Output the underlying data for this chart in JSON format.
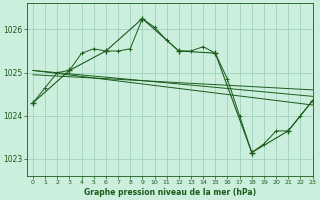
{
  "title": "Graphe pression niveau de la mer (hPa)",
  "bg_color": "#cceedd",
  "grid_color": "#99ccbb",
  "line_color": "#1a5c1a",
  "xlim": [
    -0.5,
    23
  ],
  "ylim": [
    1022.6,
    1026.6
  ],
  "yticks": [
    1023,
    1024,
    1025,
    1026
  ],
  "xticks": [
    0,
    1,
    2,
    3,
    4,
    5,
    6,
    7,
    8,
    9,
    10,
    11,
    12,
    13,
    14,
    15,
    16,
    17,
    18,
    19,
    20,
    21,
    22,
    23
  ],
  "series_hourly": {
    "x": [
      0,
      1,
      2,
      3,
      4,
      5,
      6,
      7,
      8,
      9,
      10,
      11,
      12,
      13,
      14,
      15,
      16,
      17,
      18,
      19,
      20,
      21,
      22,
      23
    ],
    "y": [
      1024.3,
      1024.65,
      1025.0,
      1025.05,
      1025.45,
      1025.55,
      1025.5,
      1025.5,
      1025.55,
      1026.25,
      1026.05,
      1025.75,
      1025.5,
      1025.5,
      1025.6,
      1025.45,
      1024.85,
      1024.0,
      1023.15,
      1023.35,
      1023.65,
      1023.65,
      1024.0,
      1024.35
    ]
  },
  "series_3h": {
    "x": [
      0,
      3,
      6,
      9,
      12,
      15,
      18,
      21,
      23
    ],
    "y": [
      1024.3,
      1025.05,
      1025.5,
      1026.25,
      1025.5,
      1025.45,
      1023.15,
      1023.65,
      1024.35
    ]
  },
  "series_lin1": {
    "x": [
      0,
      23
    ],
    "y": [
      1025.05,
      1024.45
    ]
  },
  "series_lin2": {
    "x": [
      0,
      23
    ],
    "y": [
      1024.95,
      1024.6
    ]
  },
  "series_lin3": {
    "x": [
      0,
      23
    ],
    "y": [
      1025.05,
      1024.25
    ]
  }
}
